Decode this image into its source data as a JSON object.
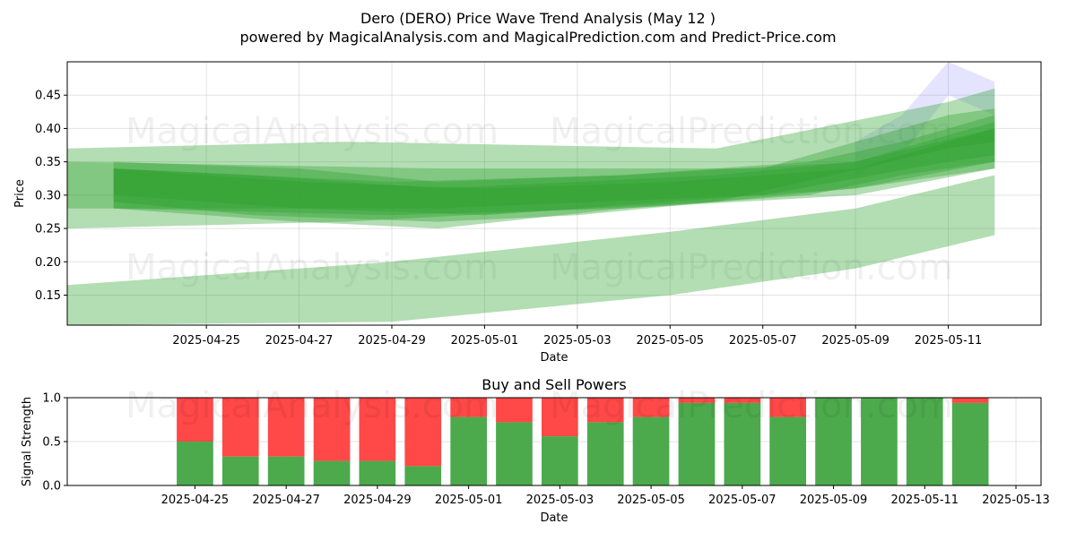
{
  "title_line1": "Dero (DERO) Price Wave Trend Analysis (May 12 )",
  "title_line2": "powered by MagicalAnalysis.com and MagicalPrediction.com and Predict-Price.com",
  "watermarks": [
    "MagicalAnalysis.com",
    "MagicalPrediction.com"
  ],
  "chart_data": [
    {
      "type": "area",
      "xlabel": "Date",
      "ylabel": "Price",
      "xlim": [
        "2025-04-22",
        "2025-05-13"
      ],
      "ylim": [
        0.105,
        0.5
      ],
      "x_ticks": [
        "2025-04-25",
        "2025-04-27",
        "2025-04-29",
        "2025-05-01",
        "2025-05-03",
        "2025-05-05",
        "2025-05-07",
        "2025-05-09",
        "2025-05-11"
      ],
      "y_ticks": [
        "0.15",
        "0.20",
        "0.25",
        "0.30",
        "0.35",
        "0.40",
        "0.45"
      ],
      "grid": true,
      "colors": {
        "band": "#2ca02c",
        "highlight": "#6a6aff"
      },
      "bands": [
        {
          "points": [
            [
              "2025-04-22",
              0.25,
              0.37
            ],
            [
              "2025-04-28",
              0.26,
              0.38
            ],
            [
              "2025-05-06",
              0.29,
              0.37
            ],
            [
              "2025-05-11",
              0.37,
              0.44
            ],
            [
              "2025-05-12",
              0.38,
              0.46
            ]
          ]
        },
        {
          "points": [
            [
              "2025-04-23",
              0.28,
              0.35
            ],
            [
              "2025-04-27",
              0.26,
              0.34
            ],
            [
              "2025-04-30",
              0.25,
              0.32
            ],
            [
              "2025-05-04",
              0.28,
              0.33
            ],
            [
              "2025-05-08",
              0.3,
              0.35
            ],
            [
              "2025-05-10",
              0.33,
              0.38
            ],
            [
              "2025-05-12",
              0.35,
              0.42
            ]
          ]
        },
        {
          "points": [
            [
              "2025-04-23",
              0.29,
              0.34
            ],
            [
              "2025-04-26",
              0.27,
              0.33
            ],
            [
              "2025-04-30",
              0.26,
              0.31
            ],
            [
              "2025-05-03",
              0.27,
              0.32
            ],
            [
              "2025-05-06",
              0.29,
              0.33
            ],
            [
              "2025-05-09",
              0.31,
              0.35
            ],
            [
              "2025-05-12",
              0.34,
              0.41
            ]
          ]
        },
        {
          "points": [
            [
              "2025-04-23",
              0.3,
              0.34
            ],
            [
              "2025-04-27",
              0.28,
              0.32
            ],
            [
              "2025-05-01",
              0.27,
              0.31
            ],
            [
              "2025-05-05",
              0.29,
              0.32
            ],
            [
              "2025-05-09",
              0.31,
              0.34
            ],
            [
              "2025-05-12",
              0.35,
              0.4
            ]
          ]
        },
        {
          "points": [
            [
              "2025-04-23",
              0.28,
              0.34
            ],
            [
              "2025-04-29",
              0.27,
              0.32
            ],
            [
              "2025-05-04",
              0.28,
              0.33
            ],
            [
              "2025-05-09",
              0.3,
              0.35
            ],
            [
              "2025-05-12",
              0.34,
              0.4
            ]
          ]
        },
        {
          "points": [
            [
              "2025-04-22",
              0.28,
              0.35
            ],
            [
              "2025-04-30",
              0.28,
              0.34
            ],
            [
              "2025-05-07",
              0.3,
              0.34
            ],
            [
              "2025-05-11",
              0.35,
              0.42
            ],
            [
              "2025-05-12",
              0.36,
              0.43
            ]
          ]
        },
        {
          "points": [
            [
              "2025-04-22",
              0.105,
              0.165
            ],
            [
              "2025-04-29",
              0.11,
              0.2
            ],
            [
              "2025-05-05",
              0.15,
              0.245
            ],
            [
              "2025-05-09",
              0.19,
              0.28
            ],
            [
              "2025-05-12",
              0.24,
              0.33
            ]
          ]
        }
      ],
      "highlight_band": {
        "points": [
          [
            "2025-05-09",
            0.33,
            0.38
          ],
          [
            "2025-05-10",
            0.36,
            0.42
          ],
          [
            "2025-05-11",
            0.45,
            0.5
          ],
          [
            "2025-05-12",
            0.42,
            0.47
          ]
        ]
      }
    },
    {
      "type": "bar",
      "title": "Buy and Sell Powers",
      "xlabel": "Date",
      "ylabel": "Signal Strength",
      "xlim": [
        "2025-04-23",
        "2025-05-13"
      ],
      "ylim": [
        0,
        1
      ],
      "x_ticks": [
        "2025-04-25",
        "2025-04-27",
        "2025-04-29",
        "2025-05-01",
        "2025-05-03",
        "2025-05-05",
        "2025-05-07",
        "2025-05-09",
        "2025-05-11",
        "2025-05-13"
      ],
      "y_ticks": [
        "0.0",
        "0.5",
        "1.0"
      ],
      "grid": true,
      "colors": {
        "buy": "#4caa4c",
        "sell": "#ff4848"
      },
      "dates": [
        "2025-04-25",
        "2025-04-26",
        "2025-04-27",
        "2025-04-28",
        "2025-04-29",
        "2025-04-30",
        "2025-05-01",
        "2025-05-02",
        "2025-05-03",
        "2025-05-04",
        "2025-05-05",
        "2025-05-06",
        "2025-05-07",
        "2025-05-08",
        "2025-05-09",
        "2025-05-10",
        "2025-05-11",
        "2025-05-12"
      ],
      "buy": [
        0.5,
        0.33,
        0.33,
        0.28,
        0.28,
        0.22,
        0.78,
        0.72,
        0.56,
        0.72,
        0.78,
        0.94,
        0.94,
        0.78,
        1.0,
        1.0,
        1.0,
        0.94
      ]
    }
  ]
}
